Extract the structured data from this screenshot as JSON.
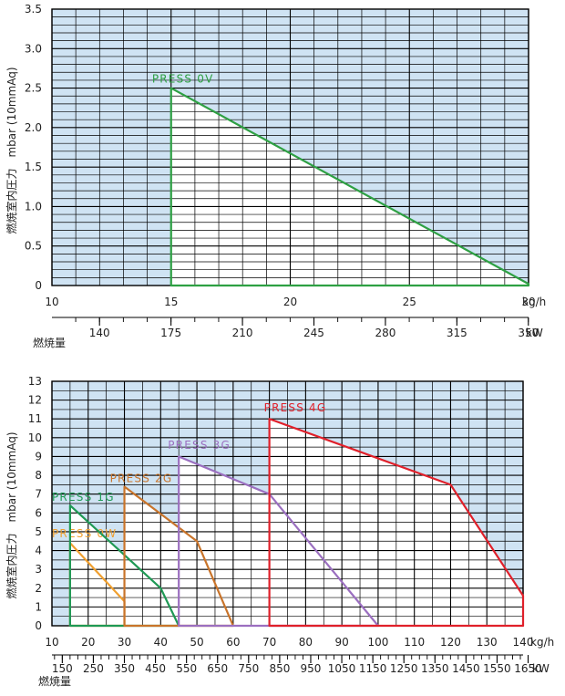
{
  "colors": {
    "plot_background": "#cfe3f3",
    "grid": "#000000",
    "axis_text": "#222222"
  },
  "chart_data": [
    {
      "type": "area",
      "xlabel": "燃焼量",
      "ylabel": "燃焼室内圧力　mbar (10mmAq)",
      "x_unit": "kg/h",
      "kw_unit": "kW",
      "xlim": [
        10,
        30
      ],
      "ylim": [
        0,
        3.5
      ],
      "x_ticks": [
        10,
        15,
        20,
        25,
        30
      ],
      "x_tick_labels": [
        "10",
        "15",
        "20",
        "25",
        "30"
      ],
      "y_ticks": [
        0,
        0.5,
        1.0,
        1.5,
        2.0,
        2.5,
        3.0,
        3.5
      ],
      "y_tick_labels": [
        "0",
        "0.5",
        "1.0",
        "1.5",
        "2.0",
        "2.5",
        "3.0",
        "3.5"
      ],
      "kw_ticks": [
        140,
        175,
        210,
        245,
        280,
        315,
        350
      ],
      "kw_tick_labels": [
        "140",
        "175",
        "210",
        "245",
        "280",
        "315",
        "350"
      ],
      "kw_per_kgh": 11.67,
      "kw_minor_step": 11.667,
      "grid": true,
      "series": [
        {
          "name": "PRESS 0V",
          "color": "#2ea043",
          "points": [
            [
              15,
              0
            ],
            [
              15,
              2.5
            ],
            [
              30,
              0.02
            ],
            [
              30,
              0
            ]
          ],
          "label_at": [
            14.2,
            2.57
          ]
        }
      ]
    },
    {
      "type": "area",
      "xlabel": "燃焼量",
      "ylabel": "燃焼室内圧力　mbar (10mmAq)",
      "x_unit": "kg/h",
      "kw_unit": "kW",
      "xlim": [
        10,
        140
      ],
      "ylim": [
        0,
        13
      ],
      "x_ticks": [
        10,
        20,
        30,
        40,
        50,
        60,
        70,
        80,
        90,
        100,
        110,
        120,
        130,
        140
      ],
      "x_tick_labels": [
        "10",
        "20",
        "30",
        "40",
        "50",
        "60",
        "70",
        "80",
        "90",
        "100",
        "110",
        "120",
        "130",
        "140"
      ],
      "y_ticks": [
        0,
        1,
        2,
        3,
        4,
        5,
        6,
        7,
        8,
        9,
        10,
        11,
        12,
        13
      ],
      "y_tick_labels": [
        "0",
        "1",
        "2",
        "3",
        "4",
        "5",
        "6",
        "7",
        "8",
        "9",
        "10",
        "11",
        "12",
        "13"
      ],
      "kw_ticks": [
        150,
        250,
        350,
        450,
        550,
        650,
        750,
        850,
        950,
        1050,
        1150,
        1250,
        1350,
        1450,
        1550,
        1650
      ],
      "kw_tick_labels": [
        "150",
        "250",
        "350",
        "450",
        "550",
        "650",
        "750",
        "850",
        "950",
        "1050",
        "1150",
        "1250",
        "1350",
        "1450",
        "1550",
        "1650"
      ],
      "kw_per_kgh": 11.67,
      "kw_minor_step": 25,
      "grid": true,
      "series": [
        {
          "name": "PRESS 0W",
          "color": "#f0a030",
          "points": [
            [
              15,
              0
            ],
            [
              15,
              4.4
            ],
            [
              30,
              1.3
            ],
            [
              30,
              0
            ]
          ],
          "label_at": [
            10,
            4.7
          ]
        },
        {
          "name": "PRESS 1G",
          "color": "#1f9955",
          "points": [
            [
              15,
              0
            ],
            [
              15,
              6.4
            ],
            [
              40,
              2.0
            ],
            [
              45,
              0
            ]
          ],
          "label_at": [
            10,
            6.65
          ]
        },
        {
          "name": "PRESS 2G",
          "color": "#c9742a",
          "points": [
            [
              30,
              0
            ],
            [
              30,
              7.4
            ],
            [
              50,
              4.5
            ],
            [
              60,
              0
            ]
          ],
          "label_at": [
            26,
            7.65
          ]
        },
        {
          "name": "PRESS 3G",
          "color": "#9b6fc0",
          "points": [
            [
              45,
              0
            ],
            [
              45,
              9.0
            ],
            [
              70,
              7.0
            ],
            [
              100,
              0
            ]
          ],
          "label_at": [
            42,
            9.4
          ]
        },
        {
          "name": "PRESS 4G",
          "color": "#e0202a",
          "points": [
            [
              70,
              0
            ],
            [
              70,
              11.0
            ],
            [
              120,
              7.5
            ],
            [
              140,
              1.6
            ],
            [
              140,
              0
            ]
          ],
          "label_at": [
            68.5,
            11.4
          ]
        }
      ]
    }
  ]
}
